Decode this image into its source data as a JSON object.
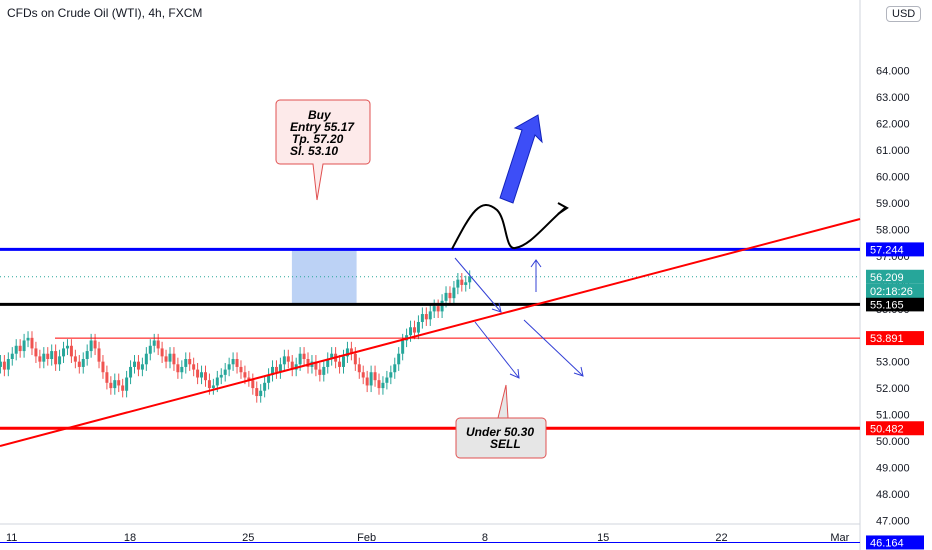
{
  "header": {
    "symbol_title": "CFDs on Crude Oil (WTI), 4h, FXCM",
    "currency": "USD"
  },
  "annotations": {
    "buy_note": [
      "Buy",
      "Entry 55.17",
      "Tp. 57.20",
      "Sl. 53.10"
    ],
    "sell_note": [
      "Under 50.30",
      "SELL"
    ]
  },
  "chart_data": {
    "type": "candlestick",
    "title": "CFDs on Crude Oil (WTI), 4h, FXCM",
    "y_axis": {
      "ticks": [
        "47.000",
        "48.000",
        "49.000",
        "50.000",
        "51.000",
        "52.000",
        "53.000",
        "54.000",
        "55.000",
        "56.000",
        "57.000",
        "58.000",
        "59.000",
        "60.000",
        "61.000",
        "62.000",
        "63.000",
        "64.000"
      ],
      "range": [
        45.8,
        64.5
      ]
    },
    "x_axis": {
      "ticks": [
        "11",
        "18",
        "25",
        "Feb",
        "8",
        "15",
        "22",
        "Mar"
      ]
    },
    "price_labels": [
      {
        "value": 57.244,
        "text": "57.244",
        "color": "#0000ff"
      },
      {
        "value": 56.209,
        "text": "56.209",
        "color": "#26a69a"
      },
      {
        "value": 55.165,
        "text": "55.165",
        "color": "#000000"
      },
      {
        "value": 53.891,
        "text": "53.891",
        "color": "#ff0000"
      },
      {
        "value": 50.482,
        "text": "50.482",
        "color": "#ff0000"
      },
      {
        "value": 46.164,
        "text": "46.164",
        "color": "#0000ff"
      }
    ],
    "countdown": "02:18:26",
    "horizontal_lines": [
      {
        "value": 57.244,
        "color": "#0000ff"
      },
      {
        "value": 55.165,
        "color": "#000000"
      },
      {
        "value": 53.891,
        "color": "#ff0000"
      },
      {
        "value": 50.482,
        "color": "#ff0000"
      },
      {
        "value": 46.164,
        "color": "#0000ff"
      }
    ],
    "last_price": 56.209,
    "candle_colors": {
      "up": "#26a69a",
      "down": "#ef5350"
    },
    "candles": {
      "start_date": "2021-01-08",
      "interval": "4h",
      "closes": [
        52.3,
        52.1,
        51.9,
        52.2,
        52.0,
        51.8,
        52.3,
        52.6,
        52.4,
        52.8,
        53.0,
        52.7,
        53.1,
        53.3,
        53.6,
        53.4,
        53.8,
        53.9,
        53.5,
        53.2,
        53.0,
        53.3,
        53.1,
        53.4,
        52.9,
        53.2,
        53.5,
        53.6,
        53.2,
        53.0,
        52.8,
        53.1,
        53.4,
        53.8,
        53.5,
        53.0,
        52.6,
        52.2,
        52.0,
        52.3,
        52.1,
        51.9,
        52.4,
        52.8,
        53.0,
        52.7,
        52.9,
        53.3,
        53.6,
        53.8,
        53.5,
        53.2,
        53.0,
        53.3,
        52.9,
        52.6,
        52.8,
        53.1,
        52.9,
        52.7,
        52.4,
        52.6,
        52.3,
        52.0,
        52.1,
        52.4,
        52.5,
        52.7,
        52.9,
        53.1,
        52.8,
        52.6,
        52.4,
        52.3,
        52.0,
        51.7,
        51.9,
        52.2,
        52.5,
        52.8,
        52.6,
        52.9,
        53.2,
        53.0,
        52.7,
        52.9,
        53.3,
        53.1,
        52.8,
        53.0,
        52.7,
        52.5,
        52.8,
        53.1,
        53.3,
        53.0,
        52.8,
        53.2,
        53.5,
        53.3,
        52.9,
        52.6,
        52.4,
        52.1,
        52.6,
        52.3,
        52.0,
        52.2,
        52.4,
        52.6,
        52.9,
        53.3,
        53.8,
        54.0,
        54.3,
        54.1,
        54.5,
        54.8,
        54.6,
        54.9,
        55.1,
        54.9,
        55.3,
        55.6,
        55.4,
        55.8,
        56.1,
        55.9,
        56.0,
        56.2
      ]
    },
    "box": {
      "x_start_date": "2021-01-29",
      "x_end_date": "2021-02-01",
      "y_range": [
        55.165,
        57.244
      ]
    }
  }
}
